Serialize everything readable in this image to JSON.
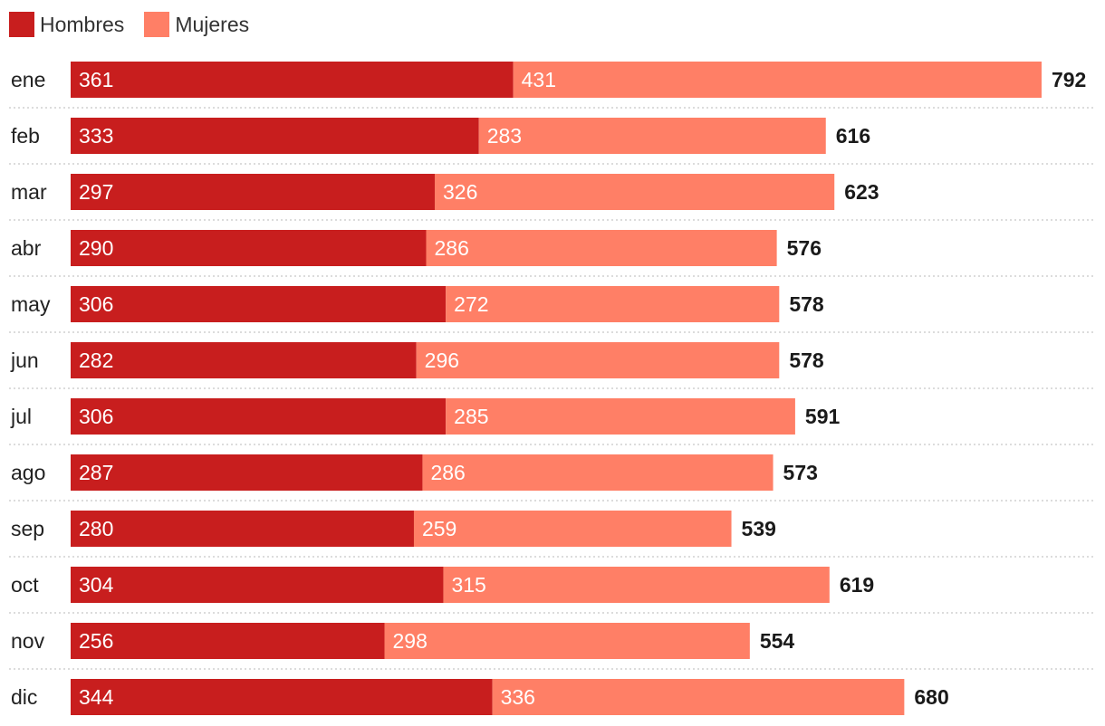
{
  "chart_data": {
    "type": "bar",
    "orientation": "horizontal",
    "stacked": true,
    "categories": [
      "ene",
      "feb",
      "mar",
      "abr",
      "may",
      "jun",
      "jul",
      "ago",
      "sep",
      "oct",
      "nov",
      "dic"
    ],
    "series": [
      {
        "name": "Hombres",
        "color": "#c81e1e",
        "values": [
          361,
          333,
          297,
          290,
          306,
          282,
          306,
          287,
          280,
          304,
          256,
          344
        ]
      },
      {
        "name": "Mujeres",
        "color": "#ff7f66",
        "values": [
          431,
          283,
          326,
          286,
          272,
          296,
          285,
          286,
          259,
          315,
          298,
          336
        ]
      }
    ],
    "totals": [
      792,
      616,
      623,
      576,
      578,
      578,
      591,
      573,
      539,
      619,
      554,
      680
    ],
    "legend_position": "top-left",
    "grid": false,
    "row_separators": "dotted"
  }
}
